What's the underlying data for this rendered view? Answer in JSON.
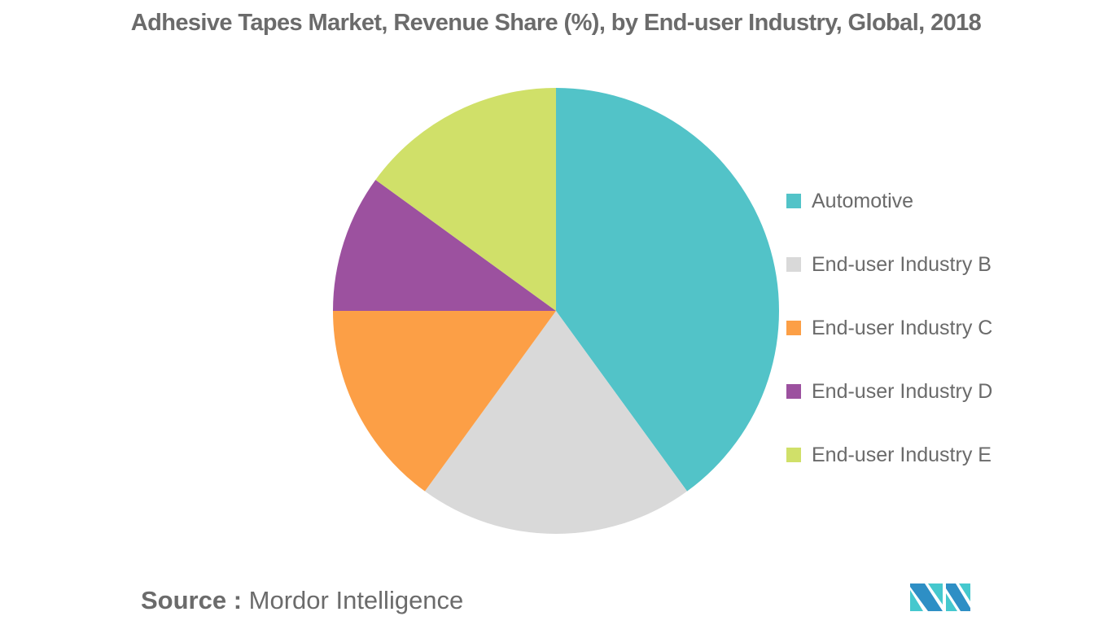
{
  "title": "Adhesive Tapes Market, Revenue Share (%), by End-user Industry, Global, 2018",
  "legend": [
    {
      "label": "Automotive",
      "color": "#52C3C8"
    },
    {
      "label": "End-user Industry B",
      "color": "#D9D9D9"
    },
    {
      "label": "End-user Industry C",
      "color": "#FC9F46"
    },
    {
      "label": "End-user Industry D",
      "color": "#9C519F"
    },
    {
      "label": "End-user Industry E",
      "color": "#D0E069"
    }
  ],
  "source": {
    "key": "Source :",
    "value": "Mordor Intelligence"
  },
  "logo": {
    "name": "mordor-intelligence-logo",
    "colors": [
      "#2E8FC5",
      "#45C8CE"
    ]
  },
  "chart_data": {
    "type": "pie",
    "title": "Adhesive Tapes Market, Revenue Share (%), by End-user Industry, Global, 2018",
    "categories": [
      "Automotive",
      "End-user Industry B",
      "End-user Industry C",
      "End-user Industry D",
      "End-user Industry E"
    ],
    "values": [
      40,
      20,
      15,
      10,
      15
    ],
    "colors": [
      "#52C3C8",
      "#D9D9D9",
      "#FC9F46",
      "#9C519F",
      "#D0E069"
    ],
    "start_angle": "12 o'clock",
    "direction": "clockwise",
    "legend_position": "right",
    "center": [
      683,
      382
    ],
    "radius": 274
  }
}
